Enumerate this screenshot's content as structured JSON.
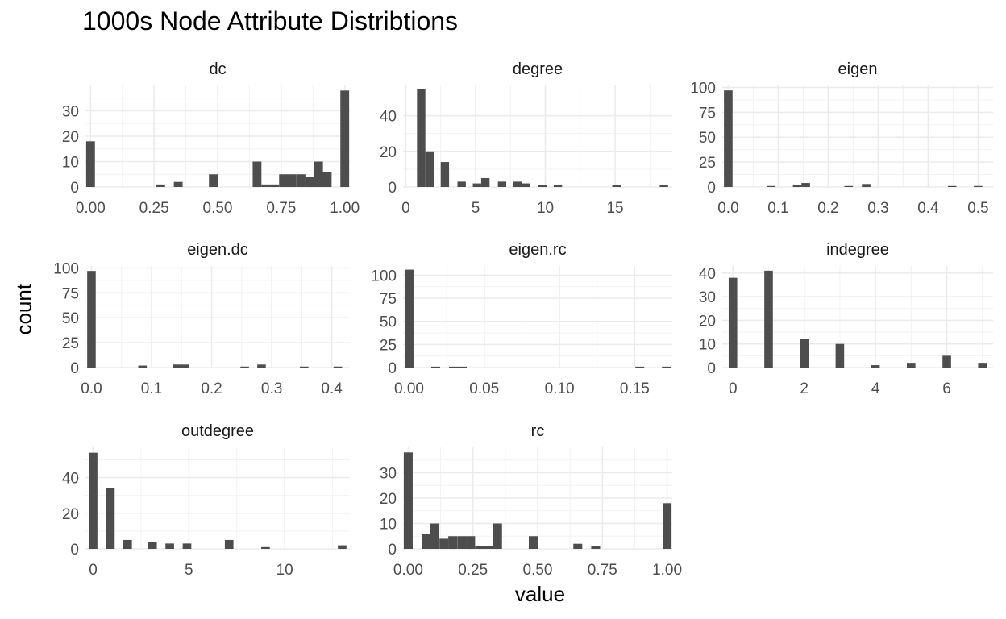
{
  "title": "1000s Node Attribute Distribtions",
  "xlabel": "value",
  "ylabel": "count",
  "colors": {
    "bar": "#4d4d4d",
    "grid": "#ebebeb",
    "background": "#ffffff"
  },
  "chart_data": {
    "type": "bar",
    "title": "1000s Node Attribute Distribtions",
    "xlabel": "value",
    "ylabel": "count",
    "grid": true,
    "panels": [
      {
        "name": "dc",
        "xlim": [
          -0.02,
          1.02
        ],
        "ylim": [
          0,
          40
        ],
        "xticks": [
          0,
          0.25,
          0.5,
          0.75,
          1.0
        ],
        "xtick_labels": [
          "0.00",
          "0.25",
          "0.50",
          "0.75",
          "1.00"
        ],
        "yticks": [
          0,
          10,
          20,
          30
        ],
        "ytick_labels": [
          "0",
          "10",
          "20",
          "30"
        ],
        "binwidth": 0.0345,
        "bars": [
          [
            0,
            18
          ],
          [
            0.276,
            1
          ],
          [
            0.345,
            2
          ],
          [
            0.483,
            5
          ],
          [
            0.655,
            10
          ],
          [
            0.69,
            1
          ],
          [
            0.724,
            1
          ],
          [
            0.759,
            5
          ],
          [
            0.793,
            5
          ],
          [
            0.828,
            5
          ],
          [
            0.862,
            4
          ],
          [
            0.897,
            10
          ],
          [
            0.931,
            6
          ],
          [
            1.0,
            38
          ]
        ]
      },
      {
        "name": "degree",
        "xlim": [
          -0.2,
          19.1
        ],
        "ylim": [
          0,
          57
        ],
        "xticks": [
          0,
          5,
          10,
          15
        ],
        "xtick_labels": [
          "0",
          "5",
          "10",
          "15"
        ],
        "yticks": [
          0,
          20,
          40
        ],
        "ytick_labels": [
          "0",
          "20",
          "40"
        ],
        "binwidth": 0.6,
        "bars": [
          [
            1.1,
            55
          ],
          [
            1.7,
            20
          ],
          [
            2.8,
            14
          ],
          [
            4.0,
            3
          ],
          [
            5.1,
            2
          ],
          [
            5.7,
            5
          ],
          [
            6.9,
            3
          ],
          [
            8.0,
            3
          ],
          [
            8.6,
            2
          ],
          [
            9.8,
            1
          ],
          [
            10.9,
            1
          ],
          [
            15.1,
            1
          ],
          [
            18.5,
            1
          ]
        ]
      },
      {
        "name": "eigen",
        "xlim": [
          -0.012,
          0.53
        ],
        "ylim": [
          0,
          102
        ],
        "xticks": [
          0,
          0.1,
          0.2,
          0.3,
          0.4,
          0.5
        ],
        "xtick_labels": [
          "0.0",
          "0.1",
          "0.2",
          "0.3",
          "0.4",
          "0.5"
        ],
        "yticks": [
          0,
          25,
          50,
          75,
          100
        ],
        "ytick_labels": [
          "0",
          "25",
          "50",
          "75",
          "100"
        ],
        "binwidth": 0.0172,
        "bars": [
          [
            0,
            97
          ],
          [
            0.086,
            1
          ],
          [
            0.138,
            2
          ],
          [
            0.155,
            4
          ],
          [
            0.241,
            1
          ],
          [
            0.276,
            3
          ],
          [
            0.448,
            1
          ],
          [
            0.5,
            1
          ]
        ]
      },
      {
        "name": "eigen.dc",
        "xlim": [
          -0.01,
          0.43
        ],
        "ylim": [
          0,
          102
        ],
        "xticks": [
          0,
          0.1,
          0.2,
          0.3,
          0.4
        ],
        "xtick_labels": [
          "0.0",
          "0.1",
          "0.2",
          "0.3",
          "0.4"
        ],
        "yticks": [
          0,
          25,
          50,
          75,
          100
        ],
        "ytick_labels": [
          "0",
          "25",
          "50",
          "75",
          "100"
        ],
        "binwidth": 0.0142,
        "bars": [
          [
            0,
            97
          ],
          [
            0.085,
            2
          ],
          [
            0.142,
            3
          ],
          [
            0.156,
            3
          ],
          [
            0.255,
            1
          ],
          [
            0.283,
            3
          ],
          [
            0.354,
            1
          ],
          [
            0.41,
            1
          ]
        ]
      },
      {
        "name": "eigen.rc",
        "xlim": [
          -0.004,
          0.175
        ],
        "ylim": [
          0,
          110
        ],
        "xticks": [
          0,
          0.05,
          0.1,
          0.15
        ],
        "xtick_labels": [
          "0.00",
          "0.05",
          "0.10",
          "0.15"
        ],
        "yticks": [
          0,
          25,
          50,
          75,
          100
        ],
        "ytick_labels": [
          "0",
          "25",
          "50",
          "75",
          "100"
        ],
        "binwidth": 0.0059,
        "bars": [
          [
            0,
            106
          ],
          [
            0.0177,
            1
          ],
          [
            0.0295,
            1
          ],
          [
            0.0354,
            1
          ],
          [
            0.1534,
            1
          ],
          [
            0.1711,
            1
          ]
        ]
      },
      {
        "name": "indegree",
        "xlim": [
          -0.3,
          7.3
        ],
        "ylim": [
          0,
          43
        ],
        "xticks": [
          0,
          2,
          4,
          6
        ],
        "xtick_labels": [
          "0",
          "2",
          "4",
          "6"
        ],
        "yticks": [
          0,
          10,
          20,
          30,
          40
        ],
        "ytick_labels": [
          "0",
          "10",
          "20",
          "30",
          "40"
        ],
        "binwidth": 0.24,
        "bars": [
          [
            0,
            38
          ],
          [
            1,
            41
          ],
          [
            2,
            12
          ],
          [
            3,
            10
          ],
          [
            4,
            1
          ],
          [
            5,
            2
          ],
          [
            6,
            5
          ],
          [
            7,
            2
          ]
        ]
      },
      {
        "name": "outdegree",
        "xlim": [
          -0.4,
          13.4
        ],
        "ylim": [
          0,
          57
        ],
        "xticks": [
          0,
          5,
          10
        ],
        "xtick_labels": [
          "0",
          "5",
          "10"
        ],
        "yticks": [
          0,
          20,
          40
        ],
        "ytick_labels": [
          "0",
          "20",
          "40"
        ],
        "binwidth": 0.45,
        "bars": [
          [
            0,
            54
          ],
          [
            0.9,
            34
          ],
          [
            1.8,
            5
          ],
          [
            3.1,
            4
          ],
          [
            4.0,
            3
          ],
          [
            4.9,
            3
          ],
          [
            7.1,
            5
          ],
          [
            9.0,
            1
          ],
          [
            13.0,
            2
          ]
        ]
      },
      {
        "name": "rc",
        "xlim": [
          -0.02,
          1.02
        ],
        "ylim": [
          0,
          40
        ],
        "xticks": [
          0,
          0.25,
          0.5,
          0.75,
          1.0
        ],
        "xtick_labels": [
          "0.00",
          "0.25",
          "0.50",
          "0.75",
          "1.00"
        ],
        "yticks": [
          0,
          10,
          20,
          30
        ],
        "ytick_labels": [
          "0",
          "10",
          "20",
          "30"
        ],
        "binwidth": 0.0345,
        "bars": [
          [
            0,
            38
          ],
          [
            0.069,
            6
          ],
          [
            0.103,
            10
          ],
          [
            0.138,
            4
          ],
          [
            0.172,
            5
          ],
          [
            0.207,
            5
          ],
          [
            0.241,
            5
          ],
          [
            0.276,
            1
          ],
          [
            0.31,
            1
          ],
          [
            0.345,
            10
          ],
          [
            0.483,
            5
          ],
          [
            0.655,
            2
          ],
          [
            0.724,
            1
          ],
          [
            1.0,
            18
          ]
        ]
      }
    ]
  }
}
